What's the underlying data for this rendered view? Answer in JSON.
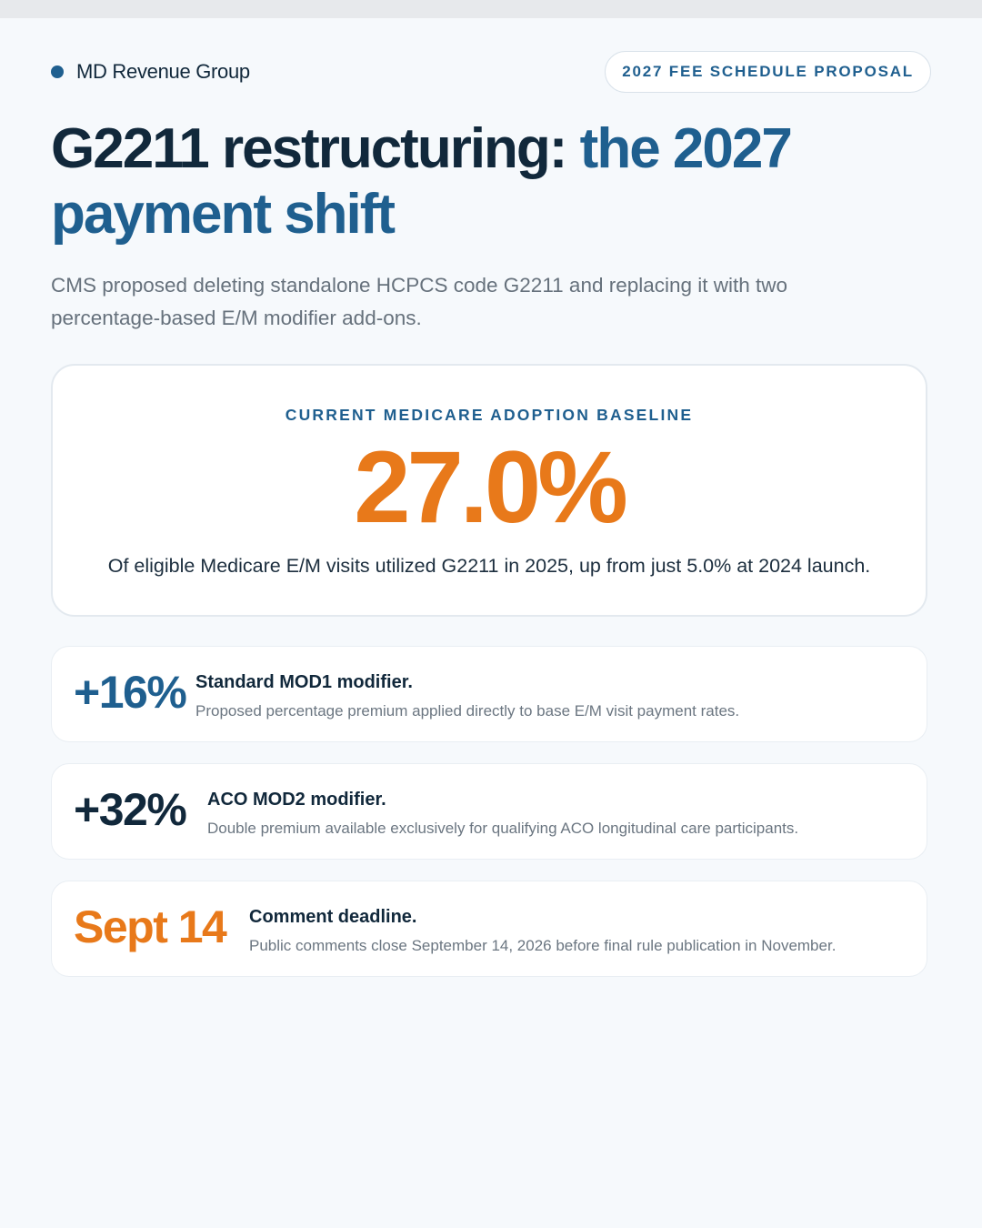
{
  "brand": {
    "name": "MD Revenue Group"
  },
  "badge": {
    "label": "2027 FEE SCHEDULE PROPOSAL"
  },
  "headline": {
    "part1": "G2211 restructuring: ",
    "part2": "the 2027 payment shift"
  },
  "intro": "CMS proposed deleting standalone HCPCS code G2211 and replacing it with two percentage-based E/M modifier add-ons.",
  "hero": {
    "label": "CURRENT MEDICARE ADOPTION BASELINE",
    "value": "27.0%",
    "description": "Of eligible Medicare E/M visits utilized G2211 in 2025, up from just 5.0% at 2024 launch."
  },
  "cards": [
    {
      "stat": "+16%",
      "title": "Standard MOD1 modifier.",
      "description": "Proposed percentage premium applied directly to base E/M visit payment rates.",
      "stat_color": "#1f5f8f"
    },
    {
      "stat": "+32%",
      "title": "ACO MOD2 modifier.",
      "description": "Double premium available exclusively for qualifying ACO longitudinal care participants.",
      "stat_color": "#11283b"
    },
    {
      "stat": "Sept 14",
      "title": "Comment deadline.",
      "description": "Public comments close September 14, 2026 before final rule publication in November.",
      "stat_color": "#e8791a"
    }
  ],
  "colors": {
    "navy": "#11283b",
    "blue": "#1f5f8f",
    "orange": "#e8791a"
  }
}
